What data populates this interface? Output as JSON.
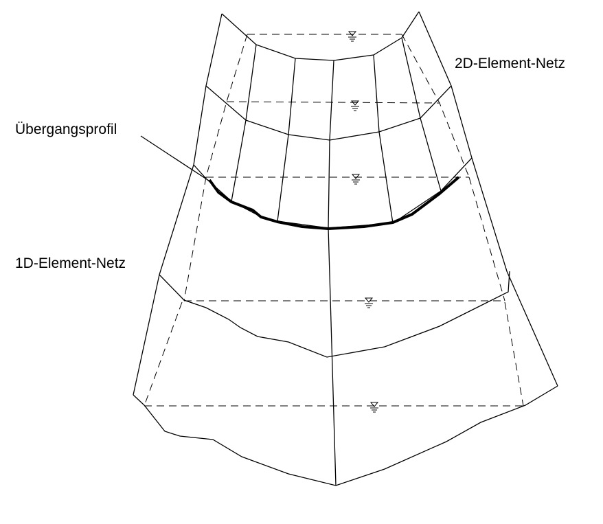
{
  "labels": {
    "mesh_2d": "2D-Element-Netz",
    "transition_profile": "Übergangsprofil",
    "mesh_1d": "1D-Element-Netz"
  },
  "symbols": {
    "water_level": "water-level-marker-icon"
  }
}
